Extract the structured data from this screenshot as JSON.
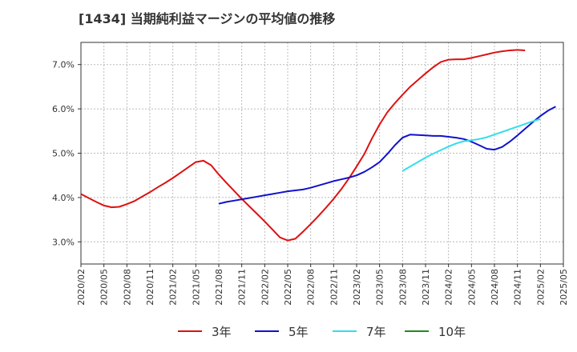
{
  "title": "[1434]  当期純利益マージンの平均値の推移",
  "chart_data": {
    "type": "line",
    "title": "[1434]  当期純利益マージンの平均値の推移",
    "xlabel": "",
    "ylabel": "",
    "x_ticks": [
      "2020/02",
      "2020/05",
      "2020/08",
      "2020/11",
      "2021/02",
      "2021/05",
      "2021/08",
      "2021/11",
      "2022/02",
      "2022/05",
      "2022/08",
      "2022/11",
      "2023/02",
      "2023/05",
      "2023/08",
      "2023/11",
      "2024/02",
      "2024/05",
      "2024/08",
      "2024/11",
      "2025/02",
      "2025/05"
    ],
    "y_ticks": [
      "3.0%",
      "4.0%",
      "5.0%",
      "6.0%",
      "7.0%"
    ],
    "y_tick_values": [
      3.0,
      4.0,
      5.0,
      6.0,
      7.0
    ],
    "ylim": [
      2.5,
      7.5
    ],
    "grid": true,
    "legend_position": "bottom",
    "series": [
      {
        "name": "3年",
        "color": "#dd1111",
        "start_month_index": 0,
        "values": [
          4.08,
          3.99,
          3.9,
          3.82,
          3.78,
          3.79,
          3.85,
          3.92,
          4.02,
          4.12,
          4.23,
          4.33,
          4.44,
          4.56,
          4.68,
          4.8,
          4.83,
          4.73,
          4.52,
          4.33,
          4.15,
          3.97,
          3.8,
          3.63,
          3.46,
          3.28,
          3.1,
          3.03,
          3.07,
          3.23,
          3.4,
          3.58,
          3.77,
          3.97,
          4.19,
          4.43,
          4.7,
          4.98,
          5.33,
          5.65,
          5.92,
          6.13,
          6.32,
          6.5,
          6.65,
          6.8,
          6.94,
          7.06,
          7.11,
          7.12,
          7.12,
          7.15,
          7.19,
          7.23,
          7.27,
          7.3,
          7.32,
          7.33,
          7.32
        ]
      },
      {
        "name": "5年",
        "color": "#1111cc",
        "start_month_index": 18,
        "values": [
          3.86,
          3.9,
          3.93,
          3.96,
          3.99,
          4.02,
          4.05,
          4.08,
          4.11,
          4.14,
          4.16,
          4.18,
          4.22,
          4.27,
          4.32,
          4.37,
          4.41,
          4.45,
          4.5,
          4.58,
          4.68,
          4.8,
          4.98,
          5.18,
          5.35,
          5.42,
          5.41,
          5.4,
          5.39,
          5.39,
          5.37,
          5.35,
          5.32,
          5.26,
          5.18,
          5.1,
          5.08,
          5.14,
          5.26,
          5.4,
          5.55,
          5.7,
          5.84,
          5.96,
          6.05
        ]
      },
      {
        "name": "7年",
        "color": "#33ddee",
        "start_month_index": 42,
        "values": [
          4.6,
          4.7,
          4.8,
          4.9,
          4.99,
          5.07,
          5.15,
          5.22,
          5.27,
          5.29,
          5.32,
          5.36,
          5.42,
          5.48,
          5.54,
          5.6,
          5.66,
          5.72,
          5.77
        ]
      },
      {
        "name": "10年",
        "color": "#228822",
        "start_month_index": 0,
        "values": []
      }
    ]
  }
}
